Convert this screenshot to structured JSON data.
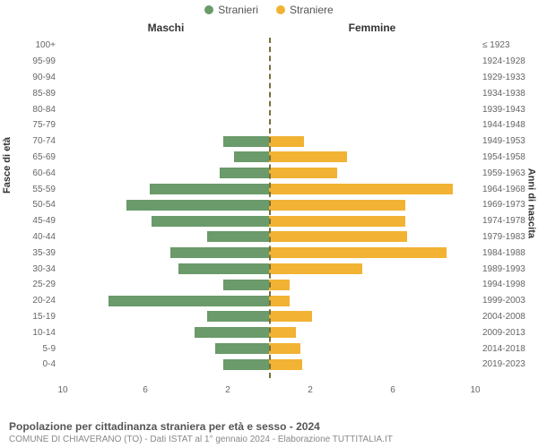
{
  "legend": {
    "male": {
      "label": "Stranieri",
      "color": "#6b9a6b"
    },
    "female": {
      "label": "Straniere",
      "color": "#f2b233"
    }
  },
  "titles": {
    "male": "Maschi",
    "female": "Femmine"
  },
  "axis": {
    "left_title": "Fasce di età",
    "right_title": "Anni di nascita",
    "max": 10,
    "ticks": [
      10,
      6,
      2,
      2,
      6,
      10
    ],
    "ticks_left": [
      "10",
      "6",
      "2"
    ],
    "ticks_right": [
      "2",
      "6",
      "10"
    ]
  },
  "colors": {
    "center_line": "#78703b"
  },
  "rows": [
    {
      "age": "100+",
      "years": "≤ 1923",
      "m": 0.0,
      "f": 0.0
    },
    {
      "age": "95-99",
      "years": "1924-1928",
      "m": 0.0,
      "f": 0.0
    },
    {
      "age": "90-94",
      "years": "1929-1933",
      "m": 0.0,
      "f": 0.0
    },
    {
      "age": "85-89",
      "years": "1934-1938",
      "m": 0.0,
      "f": 0.0
    },
    {
      "age": "80-84",
      "years": "1939-1943",
      "m": 0.0,
      "f": 0.0
    },
    {
      "age": "75-79",
      "years": "1944-1948",
      "m": 0.0,
      "f": 0.0
    },
    {
      "age": "70-74",
      "years": "1949-1953",
      "m": 2.2,
      "f": 1.7
    },
    {
      "age": "65-69",
      "years": "1954-1958",
      "m": 1.7,
      "f": 3.8
    },
    {
      "age": "60-64",
      "years": "1959-1963",
      "m": 2.4,
      "f": 3.3
    },
    {
      "age": "55-59",
      "years": "1964-1968",
      "m": 5.8,
      "f": 8.9
    },
    {
      "age": "50-54",
      "years": "1969-1973",
      "m": 6.9,
      "f": 6.6
    },
    {
      "age": "45-49",
      "years": "1974-1978",
      "m": 5.7,
      "f": 6.6
    },
    {
      "age": "40-44",
      "years": "1979-1983",
      "m": 3.0,
      "f": 6.7
    },
    {
      "age": "35-39",
      "years": "1984-1988",
      "m": 4.8,
      "f": 8.6
    },
    {
      "age": "30-34",
      "years": "1989-1993",
      "m": 4.4,
      "f": 4.5
    },
    {
      "age": "25-29",
      "years": "1994-1998",
      "m": 2.2,
      "f": 1.0
    },
    {
      "age": "20-24",
      "years": "1999-2003",
      "m": 7.8,
      "f": 1.0
    },
    {
      "age": "15-19",
      "years": "2004-2008",
      "m": 3.0,
      "f": 2.1
    },
    {
      "age": "10-14",
      "years": "2009-2013",
      "m": 3.6,
      "f": 1.3
    },
    {
      "age": "5-9",
      "years": "2014-2018",
      "m": 2.6,
      "f": 1.5
    },
    {
      "age": "0-4",
      "years": "2019-2023",
      "m": 2.2,
      "f": 1.6
    }
  ],
  "footer": {
    "line1": "Popolazione per cittadinanza straniera per età e sesso - 2024",
    "line2": "COMUNE DI CHIAVERANO (TO) - Dati ISTAT al 1° gennaio 2024 - Elaborazione TUTTITALIA.IT"
  }
}
